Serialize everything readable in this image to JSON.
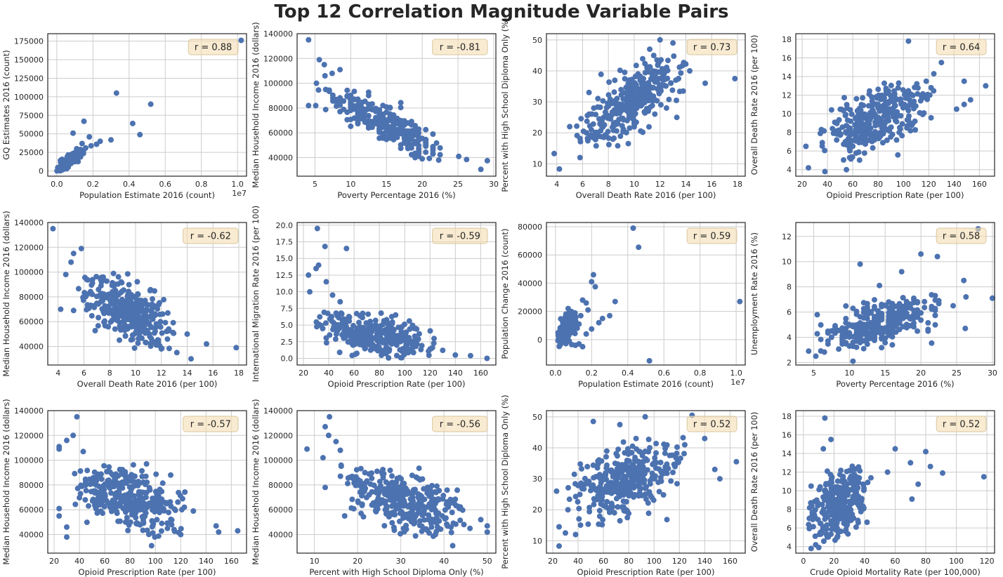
{
  "title": "Top 12 Correlation Magnitude Variable Pairs",
  "style": {
    "point_color": "#4c72b0",
    "annotation_fill": "#f5deb3",
    "annotation_edge": "#d9c7a0",
    "grid_color": "#cccccc"
  },
  "chart_data": [
    {
      "type": "scatter",
      "xlabel": "Population Estimate 2016 (count)",
      "ylabel": "GQ Estimates 2016 (count)",
      "annotation": "r = 0.88",
      "xlim": [
        -0.05,
        1.05
      ],
      "ylim": [
        -7000,
        185000
      ],
      "xticks": [
        0,
        0.2,
        0.4,
        0.6,
        0.8,
        1.0
      ],
      "xtick_labels": [
        "0.0",
        "0.2",
        "0.4",
        "0.6",
        "0.8",
        "1.0"
      ],
      "yticks": [
        0,
        25000,
        50000,
        75000,
        100000,
        125000,
        150000,
        175000
      ],
      "x_offset_label": "1e7",
      "points": [
        [
          1.02,
          176000
        ],
        [
          0.33,
          105000
        ],
        [
          0.52,
          90000
        ],
        [
          0.42,
          64000
        ],
        [
          0.46,
          49000
        ],
        [
          0.3,
          42000
        ],
        [
          0.24,
          40000
        ],
        [
          0.22,
          36000
        ],
        [
          0.19,
          34000
        ],
        [
          0.16,
          31000
        ],
        [
          0.12,
          26000
        ],
        [
          0.1,
          23000
        ],
        [
          0.08,
          22000
        ],
        [
          0.07,
          16000
        ],
        [
          0.06,
          15000
        ],
        [
          0.05,
          13000
        ],
        [
          0.04,
          11000
        ],
        [
          0.03,
          8000
        ],
        [
          0.02,
          5000
        ],
        [
          0.01,
          2000
        ],
        [
          0.005,
          500
        ],
        [
          0.15,
          67000
        ],
        [
          0.18,
          46000
        ],
        [
          0.09,
          51000
        ],
        [
          0.14,
          37000
        ],
        [
          0.11,
          30000
        ]
      ],
      "cloud": {
        "n": 160,
        "x_range": [
          0.0,
          0.15
        ],
        "y_range": [
          0,
          30000
        ],
        "corr": 0.85,
        "seed": 11
      }
    },
    {
      "type": "scatter",
      "xlabel": "Poverty Percentage 2016 (%)",
      "ylabel": "Median Household Income 2016 (dollars)",
      "annotation": "r = -0.81",
      "xlim": [
        2.5,
        30.3
      ],
      "ylim": [
        25000,
        140000
      ],
      "xticks": [
        5,
        10,
        15,
        20,
        25,
        30
      ],
      "yticks": [
        40000,
        60000,
        80000,
        100000,
        120000,
        140000
      ],
      "points": [
        [
          4.1,
          135000
        ],
        [
          5.6,
          119000
        ],
        [
          6.3,
          115000
        ],
        [
          8.5,
          111000
        ],
        [
          6.4,
          106000
        ],
        [
          7.4,
          108000
        ],
        [
          5.2,
          100000
        ],
        [
          4.1,
          82000
        ],
        [
          5.1,
          82000
        ],
        [
          28.2,
          30500
        ],
        [
          29.1,
          37500
        ],
        [
          26.2,
          38500
        ],
        [
          25.1,
          41000
        ],
        [
          22.3,
          38000
        ],
        [
          17.5,
          57000
        ],
        [
          20.0,
          39000
        ]
      ],
      "cloud": {
        "n": 270,
        "x_range": [
          5.5,
          24
        ],
        "y_range": [
          38000,
          98000
        ],
        "corr": -0.88,
        "seed": 22,
        "x_round": 0.5
      }
    },
    {
      "type": "scatter",
      "xlabel": "Overall Death Rate 2016 (per 100)",
      "ylabel": "Percent with High School Diploma Only (%)",
      "annotation": "r = 0.73",
      "xlim": [
        3.2,
        18.6
      ],
      "ylim": [
        6,
        52
      ],
      "xticks": [
        4,
        6,
        8,
        10,
        12,
        14,
        16,
        18
      ],
      "yticks": [
        10,
        20,
        30,
        40,
        50
      ],
      "points": [
        [
          17.8,
          37.5
        ],
        [
          4.2,
          8.3
        ],
        [
          3.8,
          13.3
        ],
        [
          12.0,
          50.0
        ],
        [
          13.0,
          49.0
        ],
        [
          15.5,
          36.0
        ],
        [
          14.3,
          40.0
        ],
        [
          11.2,
          47.0
        ],
        [
          13.3,
          25.0
        ],
        [
          12.5,
          28.0
        ],
        [
          5.0,
          22.0
        ],
        [
          6.5,
          33.0
        ],
        [
          5.8,
          12.0
        ]
      ],
      "cloud": {
        "n": 330,
        "x_range": [
          5.5,
          14.0
        ],
        "y_range": [
          15,
          45
        ],
        "corr": 0.75,
        "seed": 33
      }
    },
    {
      "type": "scatter",
      "xlabel": "Opioid Prescription Rate (per 100)",
      "ylabel": "Overall Death Rate 2016 (per 100)",
      "annotation": "r = 0.64",
      "xlim": [
        15,
        172
      ],
      "ylim": [
        3.3,
        18.6
      ],
      "xticks": [
        20,
        40,
        60,
        80,
        100,
        120,
        140,
        160
      ],
      "yticks": [
        4,
        6,
        8,
        10,
        12,
        14,
        16,
        18
      ],
      "points": [
        [
          104,
          17.8
        ],
        [
          130,
          15.5
        ],
        [
          165,
          13.0
        ],
        [
          153,
          11.5
        ],
        [
          148,
          13.5
        ],
        [
          148,
          11.0
        ],
        [
          124,
          14.3
        ],
        [
          118,
          13.5
        ],
        [
          23,
          6.5
        ],
        [
          25,
          4.2
        ],
        [
          38,
          3.8
        ],
        [
          55,
          4.0
        ],
        [
          142,
          10.5
        ]
      ],
      "cloud": {
        "n": 330,
        "x_range": [
          32,
          125
        ],
        "y_range": [
          5,
          13.5
        ],
        "corr": 0.68,
        "seed": 44
      }
    },
    {
      "type": "scatter",
      "xlabel": "Overall Death Rate 2016 (per 100)",
      "ylabel": "Median Household Income 2016 (dollars)",
      "annotation": "r = -0.62",
      "xlim": [
        3.2,
        18.6
      ],
      "ylim": [
        25000,
        140000
      ],
      "xticks": [
        4,
        6,
        8,
        10,
        12,
        14,
        16,
        18
      ],
      "yticks": [
        40000,
        60000,
        80000,
        100000,
        120000,
        140000
      ],
      "points": [
        [
          3.6,
          135000
        ],
        [
          5.8,
          119000
        ],
        [
          5.2,
          115000
        ],
        [
          5.0,
          108000
        ],
        [
          4.6,
          98000
        ],
        [
          4.2,
          70000
        ],
        [
          5.2,
          69000
        ],
        [
          17.8,
          39000
        ],
        [
          15.5,
          42000
        ],
        [
          14.3,
          30000
        ],
        [
          13.2,
          35000
        ],
        [
          12.0,
          38000
        ],
        [
          12.5,
          67000
        ],
        [
          14.0,
          50000
        ]
      ],
      "cloud": {
        "n": 330,
        "x_range": [
          5.5,
          13.0
        ],
        "y_range": [
          37000,
          100000
        ],
        "corr": -0.62,
        "seed": 55
      }
    },
    {
      "type": "scatter",
      "xlabel": "Opioid Prescription Rate (per 100)",
      "ylabel": "International Migration Rate 2016 (per 100)",
      "annotation": "r = -0.59",
      "xlim": [
        15,
        172
      ],
      "ylim": [
        -1,
        20.4
      ],
      "xticks": [
        20,
        40,
        60,
        80,
        100,
        120,
        140,
        160
      ],
      "yticks": [
        0,
        2.5,
        5,
        7.5,
        10,
        12.5,
        15,
        17.5,
        20
      ],
      "ytick_labels": [
        "0.0",
        "2.5",
        "5.0",
        "7.5",
        "10.0",
        "12.5",
        "15.0",
        "17.5",
        "20.0"
      ],
      "points": [
        [
          31,
          19.5
        ],
        [
          37,
          16.8
        ],
        [
          54,
          16.5
        ],
        [
          32,
          14.0
        ],
        [
          30,
          13.5
        ],
        [
          24,
          12.5
        ],
        [
          38,
          11.5
        ],
        [
          25,
          10.0
        ],
        [
          43,
          9.5
        ],
        [
          49,
          8.5
        ],
        [
          165,
          0.0
        ],
        [
          152,
          0.4
        ],
        [
          140,
          0.5
        ],
        [
          130,
          1.2
        ],
        [
          120,
          1.4
        ]
      ],
      "cloud": {
        "n": 330,
        "x_range": [
          30,
          125
        ],
        "y_range": [
          0,
          7
        ],
        "corr": -0.5,
        "seed": 66
      }
    },
    {
      "type": "scatter",
      "xlabel": "Population Estimate 2016 (count)",
      "ylabel": "Population Change 2016 (count)",
      "annotation": "r = 0.59",
      "xlim": [
        -0.05,
        1.05
      ],
      "ylim": [
        -18000,
        83000
      ],
      "xticks": [
        0,
        0.2,
        0.4,
        0.6,
        0.8,
        1.0
      ],
      "xtick_labels": [
        "0.0",
        "0.2",
        "0.4",
        "0.6",
        "0.8",
        "1.0"
      ],
      "yticks": [
        0,
        20000,
        40000,
        60000,
        80000
      ],
      "x_offset_label": "1e7",
      "points": [
        [
          0.43,
          79000
        ],
        [
          0.46,
          65500
        ],
        [
          0.21,
          46000
        ],
        [
          0.2,
          41000
        ],
        [
          0.22,
          37500
        ],
        [
          1.02,
          27000
        ],
        [
          0.52,
          -15000
        ],
        [
          0.33,
          27000
        ],
        [
          0.3,
          17000
        ],
        [
          0.26,
          15000
        ],
        [
          0.24,
          12000
        ],
        [
          0.17,
          26000
        ],
        [
          0.15,
          28000
        ],
        [
          0.18,
          21000
        ],
        [
          0.14,
          17000
        ],
        [
          0.13,
          11000
        ],
        [
          0.12,
          8000
        ],
        [
          0.2,
          7500
        ],
        [
          0.17,
          4000
        ],
        [
          0.15,
          -5000
        ],
        [
          0.13,
          -3000
        ],
        [
          0.11,
          -4000
        ],
        [
          0.09,
          -3500
        ],
        [
          0.07,
          22000
        ],
        [
          0.05,
          12000
        ]
      ],
      "cloud": {
        "n": 170,
        "x_range": [
          0.0,
          0.12
        ],
        "y_range": [
          -5000,
          20000
        ],
        "corr": 0.65,
        "seed": 77
      }
    },
    {
      "type": "scatter",
      "xlabel": "Poverty Percentage 2016 (%)",
      "ylabel": "Unemployment Rate 2016 (%)",
      "annotation": "r = 0.58",
      "xlim": [
        2.5,
        30.3
      ],
      "ylim": [
        1.8,
        13.1
      ],
      "xticks": [
        5,
        10,
        15,
        20,
        25,
        30
      ],
      "yticks": [
        2,
        4,
        6,
        8,
        10,
        12
      ],
      "points": [
        [
          28.0,
          12.6
        ],
        [
          20.0,
          10.6
        ],
        [
          22.3,
          10.4
        ],
        [
          17.3,
          9.2
        ],
        [
          11.5,
          9.8
        ],
        [
          26.0,
          8.5
        ],
        [
          30.0,
          7.1
        ],
        [
          26.3,
          7.2
        ],
        [
          26.2,
          4.7
        ],
        [
          4.3,
          2.9
        ],
        [
          5.3,
          2.5
        ],
        [
          10.5,
          2.1
        ],
        [
          14.2,
          8.1
        ],
        [
          22.0,
          7.3
        ],
        [
          24.5,
          6.5
        ]
      ],
      "cloud": {
        "n": 300,
        "x_range": [
          5.5,
          23
        ],
        "y_range": [
          2.8,
          7.5
        ],
        "corr": 0.6,
        "seed": 88,
        "x_round": 0.5
      }
    },
    {
      "type": "scatter",
      "xlabel": "Opioid Prescription Rate (per 100)",
      "ylabel": "Median Household Income 2016 (dollars)",
      "annotation": "r = -0.57",
      "xlim": [
        15,
        172
      ],
      "ylim": [
        25000,
        140000
      ],
      "xticks": [
        20,
        40,
        60,
        80,
        100,
        120,
        140,
        160
      ],
      "yticks": [
        40000,
        60000,
        80000,
        100000,
        120000,
        140000
      ],
      "points": [
        [
          38,
          135000
        ],
        [
          35,
          120000
        ],
        [
          30,
          116000
        ],
        [
          24,
          111000
        ],
        [
          24,
          109000
        ],
        [
          43,
          107000
        ],
        [
          93,
          97000
        ],
        [
          24,
          61000
        ],
        [
          24,
          55000
        ],
        [
          30,
          46000
        ],
        [
          30,
          38000
        ],
        [
          165,
          43000
        ],
        [
          150,
          42000
        ],
        [
          148,
          47000
        ],
        [
          130,
          59000
        ],
        [
          97,
          31000
        ],
        [
          120,
          40000
        ]
      ],
      "cloud": {
        "n": 330,
        "x_range": [
          32,
          125
        ],
        "y_range": [
          38000,
          100000
        ],
        "corr": -0.5,
        "seed": 99
      }
    },
    {
      "type": "scatter",
      "xlabel": "Percent with High School Diploma Only (%)",
      "ylabel": "Median Household Income 2016 (dollars)",
      "annotation": "r = -0.56",
      "xlim": [
        6,
        52
      ],
      "ylim": [
        25000,
        140000
      ],
      "xticks": [
        10,
        20,
        30,
        40,
        50
      ],
      "yticks": [
        40000,
        60000,
        80000,
        100000,
        120000,
        140000
      ],
      "points": [
        [
          13.5,
          135000
        ],
        [
          12.5,
          127000
        ],
        [
          13.3,
          120000
        ],
        [
          15.0,
          115000
        ],
        [
          16.0,
          108000
        ],
        [
          8.3,
          109000
        ],
        [
          12.5,
          78000
        ],
        [
          12.0,
          102000
        ],
        [
          42.0,
          31000
        ],
        [
          50.0,
          47000
        ],
        [
          50.0,
          42000
        ],
        [
          48.5,
          52000
        ],
        [
          46.0,
          45000
        ],
        [
          38.0,
          40000
        ],
        [
          17.0,
          55000
        ]
      ],
      "cloud": {
        "n": 330,
        "x_range": [
          16,
          45
        ],
        "y_range": [
          38000,
          98000
        ],
        "corr": -0.55,
        "seed": 111
      }
    },
    {
      "type": "scatter",
      "xlabel": "Opioid Prescription Rate (per 100)",
      "ylabel": "Percent with High School Diploma Only (%)",
      "annotation": "r = 0.52",
      "xlim": [
        15,
        172
      ],
      "ylim": [
        6,
        52
      ],
      "xticks": [
        20,
        40,
        60,
        80,
        100,
        120,
        140,
        160
      ],
      "yticks": [
        10,
        20,
        30,
        40,
        50
      ],
      "points": [
        [
          25,
          8.3
        ],
        [
          93,
          50.0
        ],
        [
          52,
          48.5
        ],
        [
          73,
          47.5
        ],
        [
          130,
          50.5
        ],
        [
          140,
          43.0
        ],
        [
          165,
          35.5
        ],
        [
          152,
          30.0
        ],
        [
          148,
          33.0
        ],
        [
          23,
          26.0
        ],
        [
          25,
          14.5
        ],
        [
          30,
          12.5
        ],
        [
          38,
          12.0
        ],
        [
          32,
          20.0
        ]
      ],
      "cloud": {
        "n": 330,
        "x_range": [
          32,
          125
        ],
        "y_range": [
          15,
          44
        ],
        "corr": 0.52,
        "seed": 122
      }
    },
    {
      "type": "scatter",
      "xlabel": "Crude Opioid Mortality Rate (per 100,000)",
      "ylabel": "Overall Death Rate 2016 (per 100)",
      "annotation": "r = 0.52",
      "xlim": [
        -5,
        125
      ],
      "ylim": [
        3.3,
        18.6
      ],
      "xticks": [
        0,
        20,
        40,
        60,
        80,
        100,
        120
      ],
      "yticks": [
        4,
        6,
        8,
        10,
        12,
        14,
        16,
        18
      ],
      "points": [
        [
          14,
          17.8
        ],
        [
          18,
          15.5
        ],
        [
          13,
          14.5
        ],
        [
          118,
          11.5
        ],
        [
          91,
          11.9
        ],
        [
          80,
          14.2
        ],
        [
          83,
          12.6
        ],
        [
          70,
          13.0
        ],
        [
          71,
          9.1
        ],
        [
          60,
          14.5
        ],
        [
          75,
          10.7
        ],
        [
          55,
          12.0
        ],
        [
          5,
          3.8
        ],
        [
          8,
          4.2
        ],
        [
          10,
          3.9
        ],
        [
          5,
          10.5
        ]
      ],
      "cloud": {
        "n": 330,
        "x_range": [
          2,
          45
        ],
        "y_range": [
          4.5,
          13
        ],
        "corr": 0.5,
        "seed": 133
      }
    }
  ]
}
